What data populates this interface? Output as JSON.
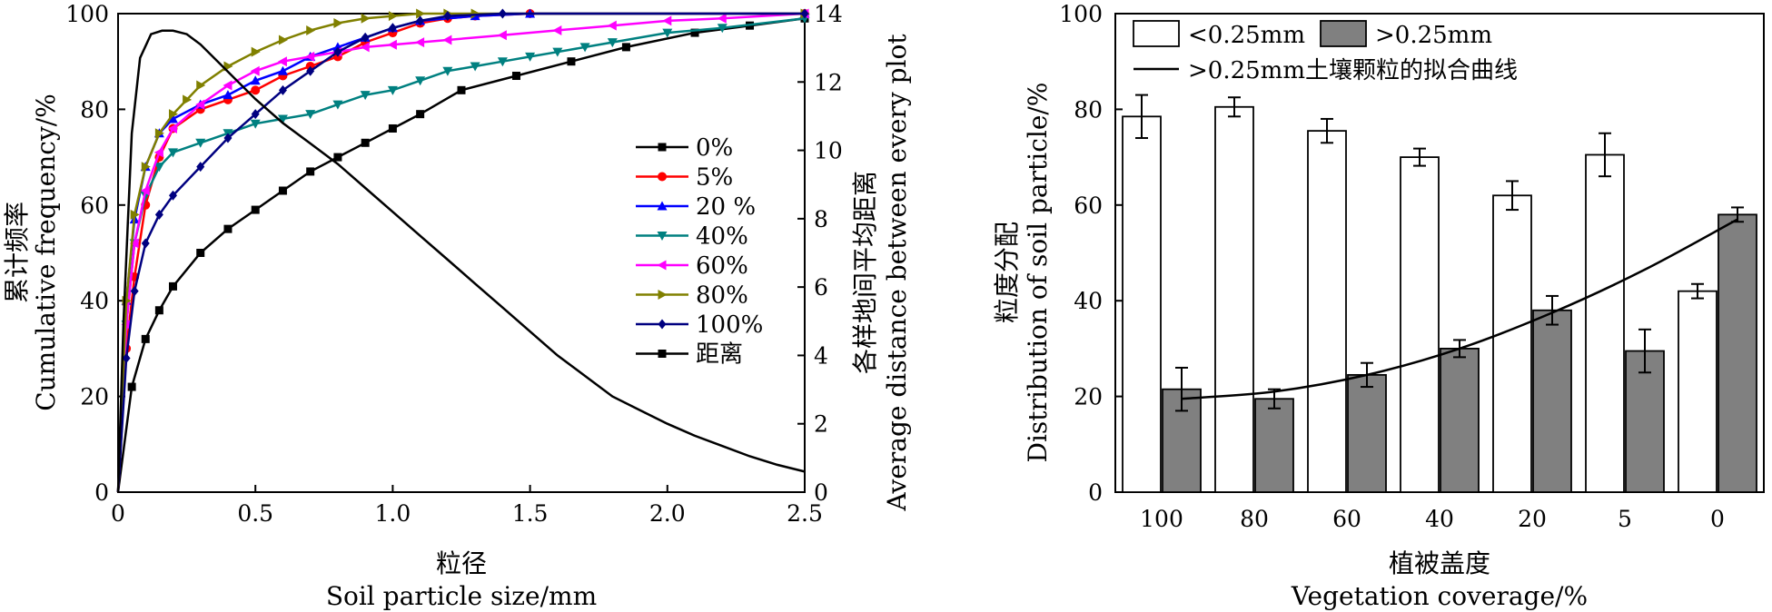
{
  "chart_data": [
    {
      "type": "line",
      "xlabel": [
        "粒径",
        "Soil particle size/mm"
      ],
      "ylabel": [
        "累计频率",
        "Cumulative frequency/%"
      ],
      "y2label": [
        "各样地间平均距离",
        "Average distance between every plot"
      ],
      "xlim": [
        0,
        2.5
      ],
      "ylim": [
        0,
        100
      ],
      "y2lim": [
        0,
        14
      ],
      "xticks": [
        "0",
        "0.5",
        "1.0",
        "1.5",
        "2.0",
        "2.5"
      ],
      "yticks": [
        "0",
        "20",
        "40",
        "60",
        "80",
        "100"
      ],
      "y2ticks": [
        "0",
        "2",
        "4",
        "6",
        "8",
        "10",
        "12",
        "14"
      ],
      "legend_position": "center-right",
      "series": [
        {
          "name": "0%",
          "color": "#000000",
          "marker": "square",
          "x": [
            0,
            0.05,
            0.1,
            0.15,
            0.2,
            0.3,
            0.4,
            0.5,
            0.6,
            0.7,
            0.8,
            0.9,
            1.0,
            1.1,
            1.25,
            1.45,
            1.65,
            1.85,
            2.1,
            2.3,
            2.5
          ],
          "y": [
            0,
            22,
            32,
            38,
            43,
            50,
            55,
            59,
            63,
            67,
            70,
            73,
            76,
            79,
            84,
            87,
            90,
            93,
            96,
            97.5,
            99
          ]
        },
        {
          "name": "5%",
          "color": "#ff0000",
          "marker": "circle",
          "x": [
            0,
            0.03,
            0.06,
            0.1,
            0.15,
            0.2,
            0.3,
            0.4,
            0.5,
            0.6,
            0.7,
            0.8,
            0.9,
            1.0,
            1.1,
            1.2,
            1.3,
            1.5,
            2.5
          ],
          "y": [
            0,
            30,
            45,
            60,
            70,
            76,
            80,
            82,
            84,
            87,
            89,
            91,
            94,
            96,
            98,
            99,
            99.5,
            100,
            100
          ]
        },
        {
          "name": "20 %",
          "color": "#0000ff",
          "marker": "triangle-up",
          "x": [
            0,
            0.03,
            0.06,
            0.1,
            0.15,
            0.2,
            0.3,
            0.4,
            0.5,
            0.6,
            0.7,
            0.8,
            0.9,
            1.0,
            1.1,
            1.3,
            1.5,
            2.5
          ],
          "y": [
            0,
            40,
            57,
            68,
            75,
            78,
            81,
            83,
            86,
            88,
            91,
            93,
            95,
            97,
            98.5,
            99.5,
            100,
            100
          ]
        },
        {
          "name": "40%",
          "color": "#008080",
          "marker": "triangle-down",
          "x": [
            0,
            0.03,
            0.06,
            0.1,
            0.15,
            0.2,
            0.3,
            0.4,
            0.5,
            0.6,
            0.7,
            0.8,
            0.9,
            1.0,
            1.1,
            1.2,
            1.3,
            1.4,
            1.5,
            1.6,
            1.7,
            1.8,
            2.0,
            2.2,
            2.5
          ],
          "y": [
            0,
            35,
            52,
            62,
            68,
            71,
            73,
            75,
            77,
            78,
            79,
            81,
            83,
            84,
            86,
            88,
            89,
            90,
            91,
            92,
            93,
            94,
            96,
            97,
            99
          ]
        },
        {
          "name": "60%",
          "color": "#ff00ff",
          "marker": "diamond-left",
          "x": [
            0,
            0.03,
            0.06,
            0.1,
            0.15,
            0.2,
            0.3,
            0.4,
            0.5,
            0.6,
            0.7,
            0.8,
            0.9,
            1.0,
            1.1,
            1.2,
            1.4,
            1.6,
            1.8,
            2.0,
            2.2,
            2.5
          ],
          "y": [
            0,
            35,
            52,
            63,
            71,
            76,
            81,
            85,
            88,
            90,
            91,
            92,
            93,
            93.5,
            94,
            94.5,
            95.5,
            96.5,
            97.5,
            98.5,
            99,
            100
          ]
        },
        {
          "name": "80%",
          "color": "#808000",
          "marker": "triangle-right",
          "x": [
            0,
            0.03,
            0.06,
            0.1,
            0.15,
            0.2,
            0.25,
            0.3,
            0.4,
            0.5,
            0.6,
            0.7,
            0.8,
            0.9,
            1.0,
            1.1,
            1.2,
            1.3,
            2.5
          ],
          "y": [
            0,
            40,
            58,
            68,
            75,
            79,
            82,
            85,
            89,
            92,
            94.5,
            96.5,
            98,
            99,
            99.5,
            100,
            100,
            100,
            100
          ]
        },
        {
          "name": "100%",
          "color": "#000080",
          "marker": "diamond",
          "x": [
            0,
            0.03,
            0.06,
            0.1,
            0.15,
            0.2,
            0.3,
            0.4,
            0.5,
            0.6,
            0.7,
            0.8,
            0.9,
            1.0,
            1.1,
            1.2,
            1.4,
            2.5
          ],
          "y": [
            0,
            28,
            42,
            52,
            58,
            62,
            68,
            74,
            79,
            84,
            88,
            92,
            95,
            97,
            98.5,
            99.5,
            100,
            100
          ]
        },
        {
          "name": "距离",
          "color": "#000000",
          "marker": "none",
          "axis": "right",
          "x": [
            0,
            0.02,
            0.05,
            0.08,
            0.12,
            0.16,
            0.2,
            0.25,
            0.3,
            0.4,
            0.5,
            0.6,
            0.7,
            0.8,
            0.9,
            1.0,
            1.1,
            1.2,
            1.3,
            1.4,
            1.5,
            1.6,
            1.7,
            1.8,
            1.9,
            2.0,
            2.1,
            2.2,
            2.3,
            2.4,
            2.5
          ],
          "y": [
            0,
            5,
            10.5,
            12.7,
            13.4,
            13.5,
            13.5,
            13.4,
            13.1,
            12.3,
            11.5,
            10.8,
            10.2,
            9.6,
            8.9,
            8.2,
            7.5,
            6.8,
            6.1,
            5.4,
            4.7,
            4.0,
            3.4,
            2.8,
            2.4,
            2.0,
            1.65,
            1.35,
            1.05,
            0.8,
            0.6
          ]
        }
      ]
    },
    {
      "type": "bar",
      "xlabel": [
        "植被盖度",
        "Vegetation coverage/%"
      ],
      "ylabel": [
        "粒度分配",
        "Distribution of soil particle/%"
      ],
      "categories": [
        "100",
        "80",
        "60",
        "40",
        "20",
        "5",
        "0"
      ],
      "ylim": [
        0,
        100
      ],
      "yticks": [
        "0",
        "20",
        "40",
        "60",
        "80",
        "100"
      ],
      "legend_position": "top-left",
      "series": [
        {
          "name": "<0.25mm",
          "color": "#ffffff",
          "values": [
            78.5,
            80.5,
            75.5,
            70,
            62,
            70.5,
            42
          ],
          "errors": [
            4.5,
            2,
            2.5,
            1.8,
            3,
            4.5,
            1.5
          ]
        },
        {
          "name": ">0.25mm",
          "color": "#808080",
          "values": [
            21.5,
            19.5,
            24.5,
            30,
            38,
            29.5,
            58
          ],
          "errors": [
            4.5,
            2,
            2.5,
            1.8,
            3,
            4.5,
            1.5
          ]
        }
      ],
      "fit_curve": {
        "name": ">0.25mm土壤颗粒的拟合曲线",
        "color": "#000000",
        "x_index": [
          0,
          1,
          2,
          3,
          4,
          5,
          6
        ],
        "y": [
          19.5,
          21,
          24.5,
          30,
          37.5,
          46.5,
          57
        ]
      }
    }
  ]
}
